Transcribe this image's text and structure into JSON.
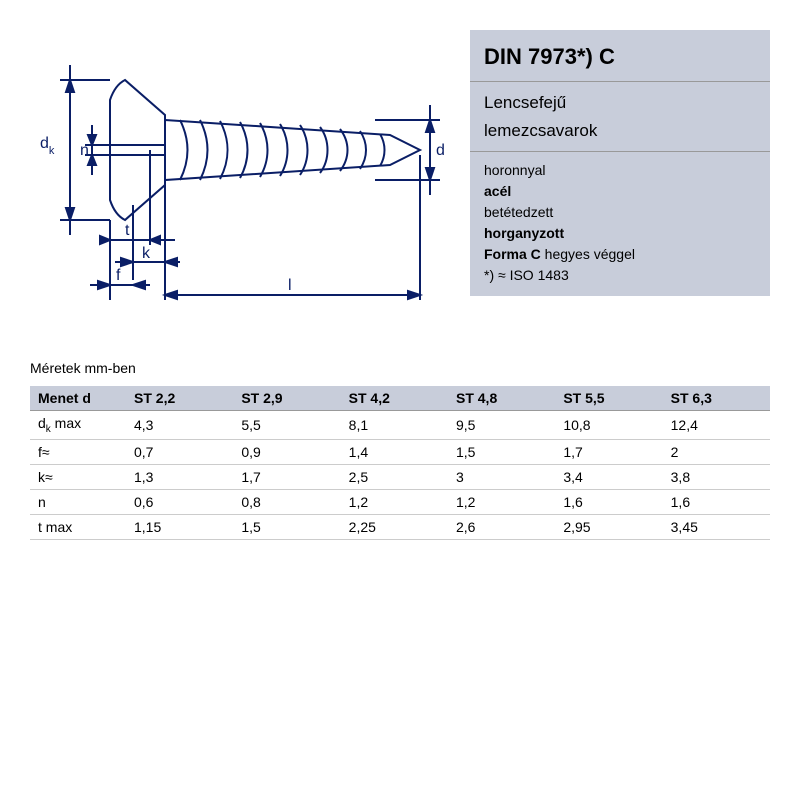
{
  "colors": {
    "panel_bg": "#c8cdda",
    "line": "#0a1e66",
    "grid": "#cccccc"
  },
  "diagram": {
    "labels": {
      "dk": "d",
      "dk_sub": "k",
      "n": "n",
      "d": "d",
      "t": "t",
      "k": "k",
      "f": "f",
      "l": "l"
    }
  },
  "info": {
    "title": "DIN 7973*) C",
    "sub1": "Lencsefejű",
    "sub2": "lemezcsavarok",
    "attr1": "horonnyal",
    "attr2": "acél",
    "attr3": "betétedzett",
    "attr4": "horganyzott",
    "attr5a": "Forma C",
    "attr5b": " hegyes véggel",
    "attr6": "*) ≈ ISO 1483"
  },
  "table": {
    "caption": "Méretek mm-ben",
    "header": [
      "Menet d",
      "ST 2,2",
      "ST 2,9",
      "ST 4,2",
      "ST 4,8",
      "ST 5,5",
      "ST 6,3"
    ],
    "rows": [
      {
        "label_html": "d<span class='sub'>k</span> max",
        "cells": [
          "4,3",
          "5,5",
          "8,1",
          "9,5",
          "10,8",
          "12,4"
        ]
      },
      {
        "label_html": "f≈",
        "cells": [
          "0,7",
          "0,9",
          "1,4",
          "1,5",
          "1,7",
          "2"
        ]
      },
      {
        "label_html": "k≈",
        "cells": [
          "1,3",
          "1,7",
          "2,5",
          "3",
          "3,4",
          "3,8"
        ]
      },
      {
        "label_html": "n",
        "cells": [
          "0,6",
          "0,8",
          "1,2",
          "1,2",
          "1,6",
          "1,6"
        ]
      },
      {
        "label_html": "t max",
        "cells": [
          "1,15",
          "1,5",
          "2,25",
          "2,6",
          "2,95",
          "3,45"
        ]
      }
    ]
  }
}
